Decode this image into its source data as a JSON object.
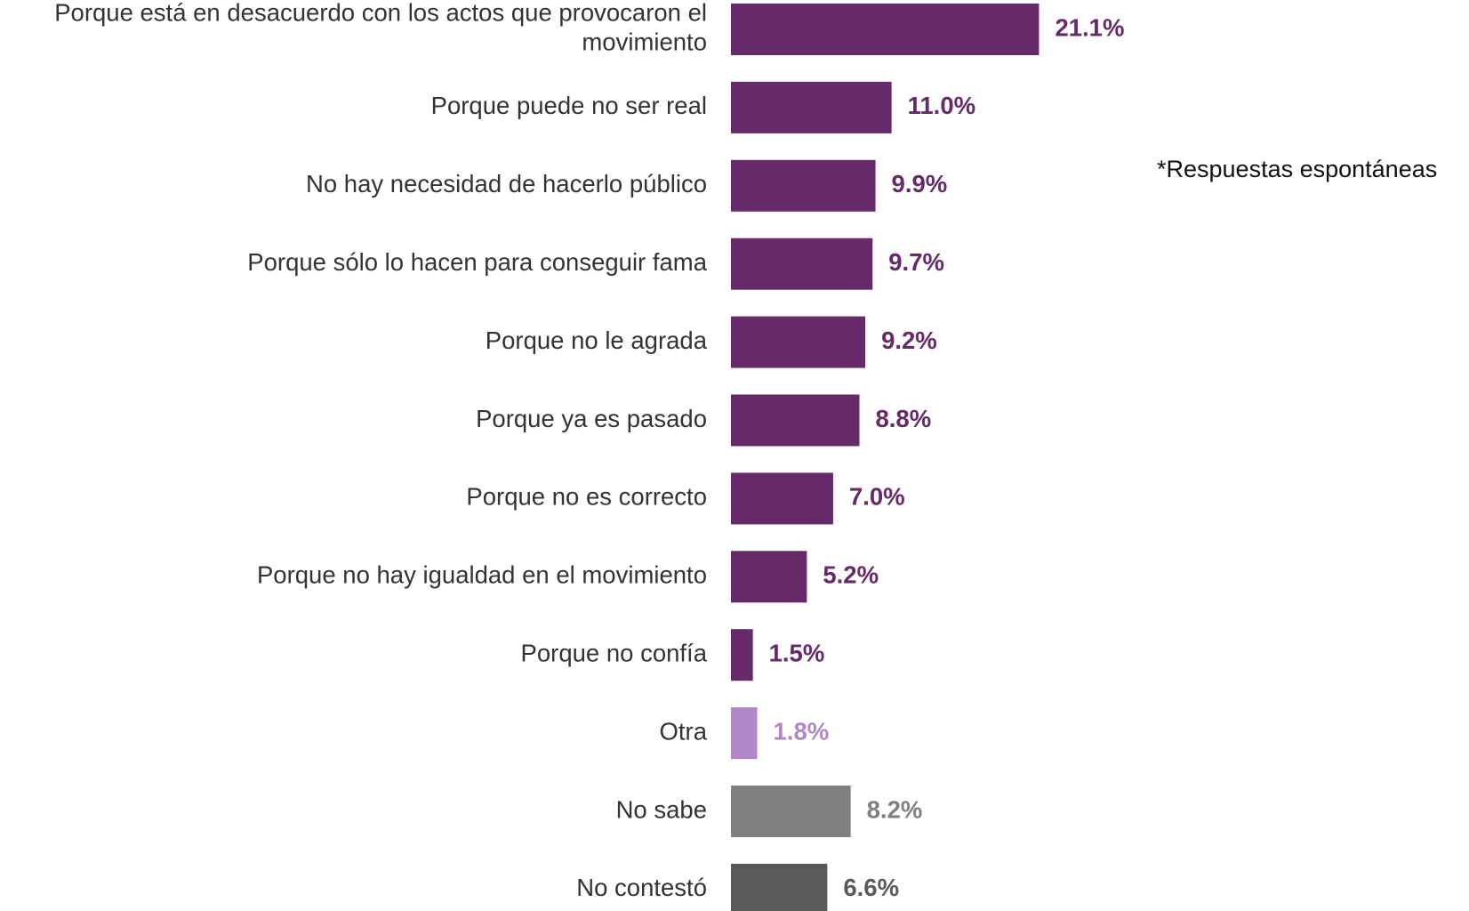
{
  "chart_data": {
    "type": "bar",
    "orientation": "horizontal",
    "annotation": "*Respuestas espontáneas",
    "categories": [
      "Porque está en desacuerdo con los actos que provocaron el movimiento",
      "Porque puede no ser real",
      "No hay necesidad de hacerlo público",
      "Porque sólo lo hacen para conseguir fama",
      "Porque no le agrada",
      "Porque ya es pasado",
      "Porque no es correcto",
      "Porque no hay igualdad en el movimiento",
      "Porque no confía",
      "Otra",
      "No sabe",
      "No contestó"
    ],
    "values": [
      21.1,
      11.0,
      9.9,
      9.7,
      9.2,
      8.8,
      7.0,
      5.2,
      1.5,
      1.8,
      8.2,
      6.6
    ],
    "value_labels": [
      "21.1%",
      "11.0%",
      "9.9%",
      "9.7%",
      "9.2%",
      "8.8%",
      "7.0%",
      "5.2%",
      "1.5%",
      "1.8%",
      "8.2%",
      "6.6%"
    ],
    "colors": [
      "#662a6b",
      "#662a6b",
      "#662a6b",
      "#662a6b",
      "#662a6b",
      "#662a6b",
      "#662a6b",
      "#662a6b",
      "#662a6b",
      "#b088c8",
      "#808080",
      "#595959"
    ]
  }
}
